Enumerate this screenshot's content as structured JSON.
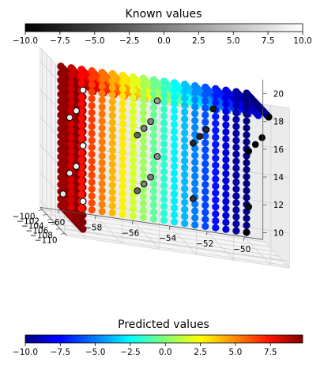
{
  "chart_data": {
    "type": "scatter",
    "projection": "3d",
    "known_colorbar": {
      "title": "Known values",
      "colormap": "grayscale",
      "range": [
        -10.0,
        10.0
      ],
      "ticks": [
        "−10.0",
        "−7.5",
        "−5.0",
        "−2.5",
        "0.0",
        "2.5",
        "5.0",
        "7.5",
        "10.0"
      ],
      "tick_values": [
        -10,
        -7.5,
        -5,
        -2.5,
        0,
        2.5,
        5,
        7.5,
        10
      ],
      "placement": "top"
    },
    "predicted_colorbar": {
      "title": "Predicted values",
      "colormap": "jet",
      "range": [
        -10.0,
        9.8
      ],
      "ticks": [
        "−10.0",
        "−7.5",
        "−5.0",
        "−2.5",
        "0.0",
        "2.5",
        "5.0",
        "7.5"
      ],
      "tick_values": [
        -10,
        -7.5,
        -5,
        -2.5,
        0,
        2.5,
        5,
        7.5
      ],
      "placement": "bottom"
    },
    "x_axis": {
      "range": [
        -111,
        -99
      ],
      "ticks": [
        "−110",
        "−108",
        "−106",
        "−104",
        "−102",
        "−100"
      ],
      "tick_values": [
        -110,
        -108,
        -106,
        -104,
        -102,
        -100
      ]
    },
    "y_axis": {
      "range": [
        -61,
        -49
      ],
      "ticks": [
        "−60",
        "−58",
        "−56",
        "−54",
        "−52",
        "−50"
      ],
      "tick_values": [
        -60,
        -58,
        -56,
        -54,
        -52,
        -50
      ]
    },
    "z_axis": {
      "range": [
        9.5,
        21
      ],
      "ticks": [
        "10",
        "12",
        "14",
        "16",
        "18",
        "20"
      ],
      "tick_values": [
        10,
        12,
        14,
        16,
        18,
        20
      ]
    },
    "grid": true,
    "predicted_grid": {
      "x_min": -110,
      "x_max": -100,
      "y_min": -60,
      "y_max": -50,
      "z_min": 10,
      "z_max": 20,
      "value_range": [
        -10.0,
        9.8
      ]
    },
    "known_points": [
      {
        "x": -110,
        "y": -60,
        "z": 20,
        "value": 10
      },
      {
        "x": -110,
        "y": -60,
        "z": 16,
        "value": 10
      },
      {
        "x": -110,
        "y": -60,
        "z": 12,
        "value": 10
      },
      {
        "x": -107,
        "y": -60,
        "z": 18,
        "value": 9
      },
      {
        "x": -107,
        "y": -60,
        "z": 14,
        "value": 9
      },
      {
        "x": -104,
        "y": -60,
        "z": 17,
        "value": 8
      },
      {
        "x": -104,
        "y": -60,
        "z": 13,
        "value": 8
      },
      {
        "x": -101,
        "y": -60,
        "z": 11,
        "value": 8
      },
      {
        "x": -110,
        "y": -56,
        "z": 20,
        "value": 2
      },
      {
        "x": -110,
        "y": -56,
        "z": 16,
        "value": 1
      },
      {
        "x": -107,
        "y": -56,
        "z": 18,
        "value": 0
      },
      {
        "x": -107,
        "y": -56,
        "z": 14,
        "value": 0
      },
      {
        "x": -104,
        "y": -56,
        "z": 17,
        "value": 0
      },
      {
        "x": -104,
        "y": -56,
        "z": 13,
        "value": 0
      },
      {
        "x": -101,
        "y": -56,
        "z": 16,
        "value": -2
      },
      {
        "x": -101,
        "y": -56,
        "z": 12,
        "value": -2
      },
      {
        "x": -110,
        "y": -53,
        "z": 20,
        "value": -8
      },
      {
        "x": -107,
        "y": -53,
        "z": 18,
        "value": -7
      },
      {
        "x": -104,
        "y": -53,
        "z": 17,
        "value": -7
      },
      {
        "x": -101,
        "y": -53,
        "z": 16,
        "value": -7
      },
      {
        "x": -101,
        "y": -53,
        "z": 12,
        "value": -6
      },
      {
        "x": -110,
        "y": -50,
        "z": 20,
        "value": -10
      },
      {
        "x": -107,
        "y": -50,
        "z": 18,
        "value": -10
      },
      {
        "x": -104,
        "y": -50,
        "z": 17,
        "value": -10
      },
      {
        "x": -101,
        "y": -50,
        "z": 16,
        "value": -10
      },
      {
        "x": -101,
        "y": -50,
        "z": 12,
        "value": -9
      },
      {
        "x": -100,
        "y": -50,
        "z": 10,
        "value": -10
      }
    ]
  }
}
